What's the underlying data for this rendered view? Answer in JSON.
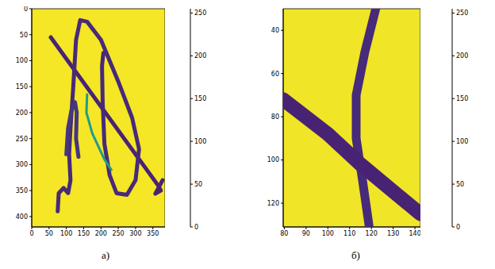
{
  "chart_data": [
    {
      "type": "heatmap",
      "label": "а)",
      "xlim": [
        0,
        385
      ],
      "ylim": [
        0,
        420
      ],
      "xticks": [
        0,
        50,
        100,
        150,
        200,
        250,
        300,
        350
      ],
      "yticks": [
        0,
        50,
        100,
        150,
        200,
        250,
        300,
        350,
        400
      ],
      "background": 252,
      "strokes": [
        {
          "value": 25,
          "points": [
            [
              55,
              55
            ],
            [
              365,
              340
            ],
            [
              373,
              350
            ],
            [
              357,
              356
            ],
            [
              378,
              330
            ]
          ]
        },
        {
          "value": 30,
          "points": [
            [
              75,
              390
            ],
            [
              78,
              355
            ],
            [
              92,
              345
            ],
            [
              105,
              355
            ],
            [
              112,
              330
            ],
            [
              108,
              280
            ],
            [
              112,
              230
            ],
            [
              120,
              150
            ],
            [
              128,
              60
            ],
            [
              140,
              22
            ],
            [
              160,
              25
            ],
            [
              200,
              60
            ],
            [
              250,
              140
            ],
            [
              290,
              210
            ],
            [
              310,
              270
            ],
            [
              300,
              330
            ],
            [
              275,
              358
            ],
            [
              245,
              355
            ],
            [
              225,
              320
            ],
            [
              210,
              260
            ],
            [
              205,
              180
            ],
            [
              203,
              110
            ],
            [
              207,
              85
            ]
          ]
        },
        {
          "value": 40,
          "points": [
            [
              100,
              280
            ],
            [
              105,
              230
            ],
            [
              115,
              195
            ],
            [
              125,
              180
            ],
            [
              130,
              200
            ],
            [
              128,
              250
            ],
            [
              135,
              285
            ]
          ]
        },
        {
          "value": 140,
          "points": [
            [
              160,
              165
            ],
            [
              158,
              200
            ],
            [
              175,
              240
            ],
            [
              210,
              290
            ],
            [
              230,
              310
            ]
          ]
        }
      ],
      "colorbar": {
        "range": [
          0,
          255
        ],
        "ticks": [
          0,
          50,
          100,
          150,
          200,
          250
        ]
      }
    },
    {
      "type": "heatmap",
      "label": "б)",
      "xlim": [
        79.5,
        142.5
      ],
      "ylim": [
        30,
        131
      ],
      "xticks": [
        80,
        90,
        100,
        110,
        120,
        130,
        140
      ],
      "yticks": [
        40,
        60,
        80,
        100,
        120
      ],
      "background": 250,
      "strokes": [
        {
          "value": 30,
          "points": [
            [
              122,
              30
            ],
            [
              117,
              50
            ],
            [
              113,
              70
            ],
            [
              113,
              90
            ],
            [
              116,
              110
            ],
            [
              119,
              131
            ]
          ]
        },
        {
          "value": 25,
          "points": [
            [
              79.5,
              72
            ],
            [
              100,
              88
            ],
            [
              115,
              102
            ],
            [
              142.5,
              125
            ]
          ]
        }
      ],
      "colorbar": {
        "range": [
          0,
          255
        ],
        "ticks": [
          0,
          50,
          100,
          150,
          200,
          250
        ]
      }
    }
  ]
}
